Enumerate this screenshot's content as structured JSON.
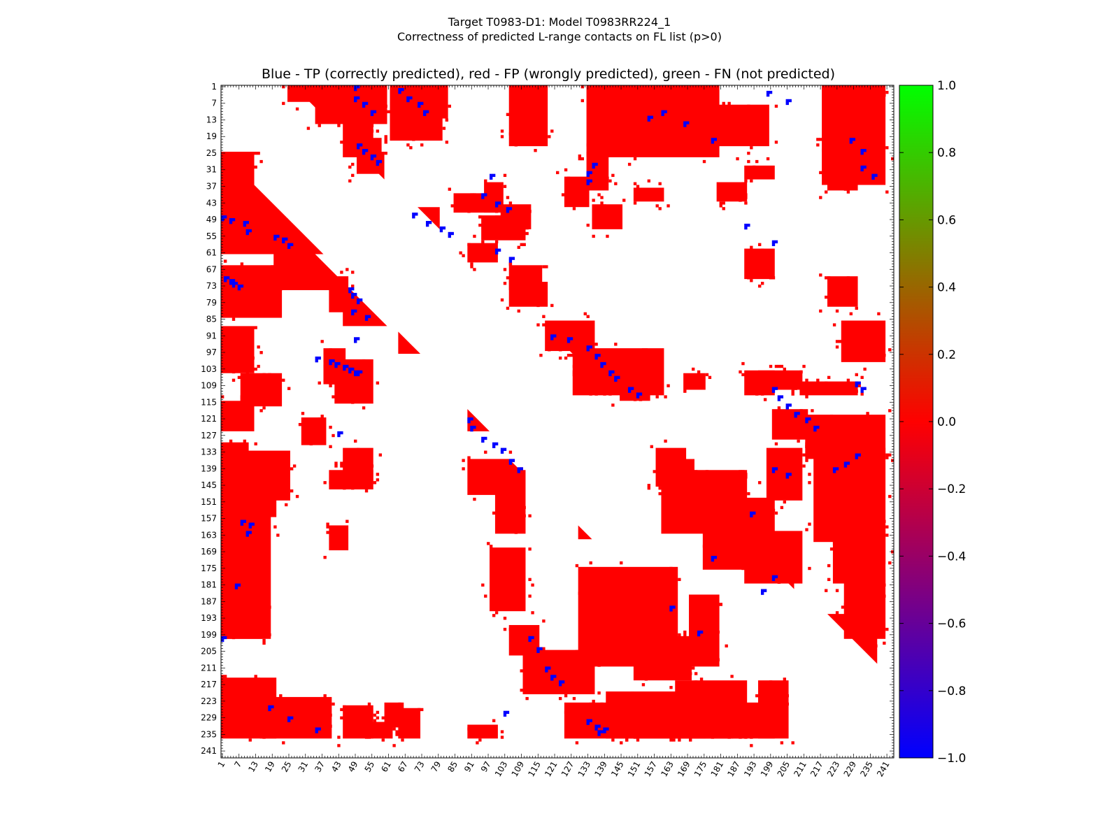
{
  "figure": {
    "title_line1": "Target T0983-D1: Model T0983RR224_1",
    "title_line2": "Correctness of predicted L-range contacts on FL list (p>0)",
    "axes_title": "Blue - TP (correctly predicted), red - FP (wrongly predicted), green - FN (not predicted)"
  },
  "chart_data": {
    "type": "heatmap",
    "matrix_size": 243,
    "tick_labels": [
      "1",
      "7",
      "13",
      "19",
      "25",
      "31",
      "37",
      "43",
      "49",
      "55",
      "61",
      "67",
      "73",
      "79",
      "85",
      "91",
      "97",
      "103",
      "109",
      "115",
      "121",
      "127",
      "133",
      "139",
      "145",
      "151",
      "157",
      "163",
      "169",
      "175",
      "181",
      "187",
      "193",
      "199",
      "205",
      "211",
      "217",
      "223",
      "229",
      "235",
      "241"
    ],
    "colorbar": {
      "min": -1.0,
      "max": 1.0,
      "ticks": [
        "1.0",
        "0.8",
        "0.6",
        "0.4",
        "0.2",
        "0.0",
        "−0.2",
        "−0.4",
        "−0.6",
        "−0.8",
        "−1.0"
      ],
      "colors": {
        "low": "#0000ff",
        "mid": "#ff0000",
        "high": "#00ff00"
      }
    },
    "legend": {
      "TP": "#0000ff",
      "FP": "#ff0000",
      "FN": "#00ff00"
    },
    "fp_blocks": [
      [
        25,
        53,
        1,
        12
      ],
      [
        44,
        52,
        1,
        5
      ],
      [
        48,
        57,
        5,
        22
      ],
      [
        66,
        84,
        1,
        22
      ],
      [
        70,
        82,
        40,
        46
      ],
      [
        88,
        104,
        1,
        12
      ],
      [
        105,
        116,
        8,
        22
      ],
      [
        115,
        125,
        1,
        12
      ],
      [
        121,
        130,
        30,
        38
      ],
      [
        130,
        140,
        1,
        10
      ],
      [
        133,
        150,
        1,
        25
      ],
      [
        140,
        146,
        40,
        55
      ],
      [
        144,
        156,
        1,
        20
      ],
      [
        150,
        200,
        1,
        18
      ],
      [
        180,
        200,
        1,
        15
      ],
      [
        160,
        168,
        40,
        46
      ],
      [
        215,
        236,
        1,
        20
      ],
      [
        222,
        236,
        15,
        40
      ],
      [
        225,
        236,
        45,
        55
      ],
      [
        231,
        236,
        55,
        62
      ],
      [
        224,
        232,
        60,
        66
      ],
      [
        232,
        236,
        90,
        100
      ],
      [
        1,
        6,
        25,
        50
      ],
      [
        1,
        14,
        35,
        60
      ],
      [
        5,
        26,
        45,
        55
      ],
      [
        20,
        32,
        50,
        58
      ],
      [
        1,
        20,
        62,
        80
      ],
      [
        1,
        12,
        75,
        82
      ],
      [
        36,
        46,
        96,
        102
      ],
      [
        44,
        52,
        102,
        112
      ],
      [
        58,
        64,
        90,
        100
      ],
      [
        66,
        74,
        105,
        116
      ],
      [
        72,
        80,
        105,
        118
      ],
      [
        1,
        22,
        105,
        118
      ],
      [
        25,
        38,
        133,
        140
      ],
      [
        34,
        44,
        125,
        133
      ],
      [
        44,
        52,
        135,
        145
      ],
      [
        38,
        42,
        150,
        160
      ],
      [
        1,
        26,
        133,
        180
      ],
      [
        8,
        22,
        175,
        198
      ],
      [
        1,
        36,
        218,
        240
      ],
      [
        30,
        38,
        220,
        230
      ],
      [
        86,
        96,
        118,
        135
      ],
      [
        96,
        112,
        128,
        160
      ],
      [
        104,
        114,
        145,
        155
      ],
      [
        132,
        145,
        158,
        168
      ],
      [
        140,
        162,
        160,
        190
      ],
      [
        150,
        175,
        175,
        200
      ],
      [
        162,
        180,
        190,
        210
      ],
      [
        132,
        165,
        215,
        240
      ],
      [
        160,
        180,
        222,
        240
      ],
      [
        176,
        200,
        226,
        240
      ],
      [
        118,
        128,
        200,
        212
      ],
      [
        120,
        135,
        212,
        240
      ],
      [
        166,
        173,
        225,
        240
      ],
      [
        86,
        100,
        225,
        240
      ],
      [
        108,
        112,
        210,
        230
      ],
      [
        132,
        150,
        198,
        210
      ],
      [
        136,
        140,
        230,
        238
      ],
      [
        104,
        110,
        195,
        210
      ],
      [
        105,
        110,
        168,
        175
      ],
      [
        168,
        190,
        98,
        110
      ],
      [
        196,
        206,
        105,
        115
      ],
      [
        205,
        220,
        110,
        135
      ],
      [
        175,
        210,
        130,
        165
      ],
      [
        185,
        210,
        170,
        180
      ],
      [
        200,
        215,
        150,
        170
      ],
      [
        140,
        162,
        100,
        110
      ],
      [
        136,
        148,
        90,
        105
      ],
      [
        224,
        236,
        125,
        200
      ],
      [
        220,
        236,
        140,
        175
      ],
      [
        216,
        236,
        165,
        190
      ],
      [
        216,
        236,
        195,
        205
      ],
      [
        225,
        236,
        170,
        185
      ],
      [
        132,
        144,
        45,
        55
      ],
      [
        105,
        110,
        130,
        145
      ],
      [
        104,
        112,
        190,
        200
      ],
      [
        60,
        70,
        190,
        200
      ],
      [
        70,
        80,
        220,
        230
      ],
      [
        30,
        34,
        190,
        200
      ],
      [
        36,
        42,
        180,
        190
      ],
      [
        48,
        56,
        95,
        110
      ],
      [
        40,
        46,
        85,
        100
      ],
      [
        100,
        115,
        42,
        55
      ],
      [
        96,
        108,
        38,
        45
      ],
      [
        226,
        236,
        65,
        72
      ]
    ],
    "fp_triangles": [
      [
        25,
        1,
        37,
        -1,
        "low"
      ],
      [
        47,
        20,
        28,
        -1,
        "low"
      ],
      [
        72,
        45,
        16,
        -1,
        "low"
      ],
      [
        90,
        65,
        8,
        -1,
        "low"
      ],
      [
        118,
        90,
        8,
        -1,
        "low"
      ],
      [
        136,
        105,
        5,
        -1,
        "low"
      ],
      [
        160,
        130,
        5,
        -1,
        "low"
      ],
      [
        175,
        145,
        6,
        -1,
        "low"
      ],
      [
        200,
        170,
        6,
        -1,
        "low"
      ],
      [
        222,
        195,
        8,
        -1,
        "low"
      ],
      [
        1,
        27,
        12,
        1,
        "up"
      ],
      [
        25,
        50,
        10,
        1,
        "up"
      ],
      [
        45,
        72,
        8,
        1,
        "up"
      ],
      [
        90,
        120,
        10,
        1,
        "up"
      ],
      [
        136,
        160,
        12,
        1,
        "up"
      ],
      [
        150,
        180,
        8,
        1,
        "up"
      ],
      [
        175,
        200,
        8,
        1,
        "up"
      ],
      [
        192,
        220,
        18,
        1,
        "up"
      ]
    ],
    "tp_points": [
      [
        48,
        1
      ],
      [
        49,
        4
      ],
      [
        50,
        9
      ],
      [
        53,
        10
      ],
      [
        55,
        20
      ],
      [
        56,
        23
      ],
      [
        58,
        25
      ],
      [
        70,
        2
      ],
      [
        71,
        4
      ],
      [
        72,
        5
      ],
      [
        73,
        7
      ],
      [
        99,
        35
      ],
      [
        100,
        40
      ],
      [
        101,
        42
      ],
      [
        102,
        45
      ],
      [
        103,
        47
      ],
      [
        104,
        49
      ],
      [
        158,
        8
      ],
      [
        159,
        11
      ],
      [
        162,
        10
      ],
      [
        200,
        1
      ],
      [
        181,
        6
      ],
      [
        225,
        18
      ],
      [
        229,
        25
      ],
      [
        233,
        35
      ],
      [
        74,
        47
      ],
      [
        76,
        48
      ],
      [
        78,
        50
      ],
      [
        82,
        48
      ],
      [
        84,
        53
      ],
      [
        92,
        49
      ],
      [
        104,
        50
      ],
      [
        126,
        43
      ],
      [
        121,
        90
      ],
      [
        124,
        91
      ],
      [
        128,
        95
      ],
      [
        130,
        99
      ],
      [
        132,
        102
      ],
      [
        136,
        105
      ],
      [
        139,
        108
      ],
      [
        200,
        112
      ],
      [
        204,
        115
      ],
      [
        211,
        118
      ],
      [
        214,
        120
      ],
      [
        216,
        123
      ],
      [
        227,
        103
      ],
      [
        230,
        133
      ],
      [
        232,
        136
      ],
      [
        233,
        139
      ],
      [
        234,
        137
      ],
      [
        189,
        163
      ],
      [
        198,
        173
      ],
      [
        171,
        178
      ],
      [
        1,
        49
      ],
      [
        5,
        49
      ],
      [
        7,
        52
      ],
      [
        10,
        55
      ],
      [
        22,
        50
      ],
      [
        24,
        52
      ],
      [
        26,
        55
      ],
      [
        28,
        57
      ],
      [
        2,
        65
      ],
      [
        5,
        68
      ],
      [
        7,
        72
      ],
      [
        10,
        74
      ],
      [
        47,
        70
      ],
      [
        50,
        75
      ],
      [
        52,
        80
      ],
      [
        54,
        83
      ],
      [
        40,
        95
      ],
      [
        43,
        100
      ],
      [
        45,
        104
      ],
      [
        33,
        98
      ],
      [
        60,
        100
      ],
      [
        63,
        105
      ],
      [
        29,
        135
      ],
      [
        32,
        133
      ],
      [
        35,
        133
      ],
      [
        12,
        155
      ],
      [
        10,
        160
      ],
      [
        14,
        168
      ],
      [
        20,
        178
      ],
      [
        3,
        198
      ],
      [
        6,
        205
      ],
      [
        91,
        120
      ],
      [
        92,
        126
      ],
      [
        95,
        133
      ],
      [
        98,
        136
      ],
      [
        101,
        138
      ],
      [
        104,
        141
      ],
      [
        106,
        143
      ],
      [
        110,
        148
      ],
      [
        112,
        151
      ],
      [
        110,
        200
      ],
      [
        113,
        202
      ],
      [
        116,
        205
      ],
      [
        119,
        208
      ],
      [
        121,
        212
      ],
      [
        124,
        215
      ],
      [
        139,
        200
      ],
      [
        141,
        205
      ],
      [
        134,
        230
      ],
      [
        137,
        226
      ],
      [
        139,
        222
      ],
      [
        155,
        192
      ],
      [
        178,
        200
      ],
      [
        183,
        196
      ],
      [
        20,
        228
      ],
      [
        24,
        232
      ],
      [
        30,
        232
      ],
      [
        33,
        236
      ],
      [
        108,
        230
      ],
      [
        110,
        232
      ],
      [
        51,
        190
      ],
      [
        57,
        200
      ]
    ]
  }
}
